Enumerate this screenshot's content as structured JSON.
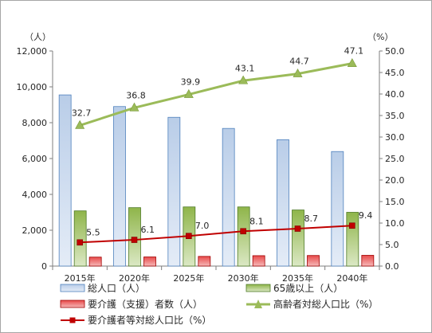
{
  "chart_data": {
    "type": "bar",
    "categories": [
      "2015年",
      "2020年",
      "2025年",
      "2030年",
      "2035年",
      "2040年"
    ],
    "y_left": {
      "unit": "（人）",
      "ylim": [
        0,
        12000
      ],
      "ticks": [
        "0",
        "2,000",
        "4,000",
        "6,000",
        "8,000",
        "10,000",
        "12,000"
      ]
    },
    "y_right": {
      "unit": "（%）",
      "ylim": [
        0,
        50
      ],
      "ticks": [
        "0.0",
        "5.0",
        "10.0",
        "15.0",
        "20.0",
        "25.0",
        "30.0",
        "35.0",
        "40.0",
        "45.0",
        "50.0"
      ]
    },
    "series": [
      {
        "name": "総人口（人）",
        "kind": "bar",
        "axis": "left",
        "color": "#95b3d7",
        "values": [
          9550,
          8900,
          8300,
          7680,
          7050,
          6390
        ]
      },
      {
        "name": "65歳以上（人）",
        "kind": "bar",
        "axis": "left",
        "color": "#9bbb59",
        "values": [
          3080,
          3260,
          3300,
          3300,
          3130,
          3000
        ]
      },
      {
        "name": "要介護（支援）者数（人）",
        "kind": "bar",
        "axis": "left",
        "color": "#e02020",
        "values": [
          500,
          510,
          540,
          580,
          590,
          600
        ]
      },
      {
        "name": "高齢者対総人口比（%）",
        "kind": "line",
        "axis": "right",
        "color": "#9bbb59",
        "marker": "triangle",
        "values": [
          32.7,
          36.8,
          39.9,
          43.1,
          44.7,
          47.1
        ],
        "labels": [
          "32.7",
          "36.8",
          "39.9",
          "43.1",
          "44.7",
          "47.1"
        ]
      },
      {
        "name": "要介護者等対総人口比（%）",
        "kind": "line",
        "axis": "right",
        "color": "#c00000",
        "marker": "square",
        "values": [
          5.5,
          6.1,
          7.0,
          8.1,
          8.7,
          9.4
        ],
        "labels": [
          "5.5",
          "6.1",
          "7.0",
          "8.1",
          "8.7",
          "9.4"
        ]
      }
    ],
    "grid": false,
    "legend_position": "bottom"
  }
}
